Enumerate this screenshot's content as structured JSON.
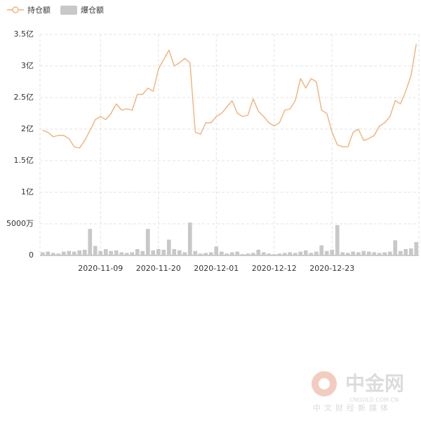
{
  "chart_data": {
    "type": "bar-line",
    "categories": [
      null,
      null,
      null,
      null,
      null,
      null,
      null,
      null,
      null,
      null,
      null,
      "2020-11-09",
      null,
      null,
      null,
      null,
      null,
      null,
      null,
      null,
      null,
      null,
      "2020-11-20",
      null,
      null,
      null,
      null,
      null,
      null,
      null,
      null,
      null,
      null,
      "2020-12-01",
      null,
      null,
      null,
      null,
      null,
      null,
      null,
      null,
      null,
      null,
      "2020-12-12",
      null,
      null,
      null,
      null,
      null,
      null,
      null,
      null,
      null,
      null,
      "2020-12-23",
      null,
      null,
      null,
      null,
      null,
      null,
      null,
      null,
      null,
      null,
      null,
      null,
      null,
      null,
      null,
      null
    ],
    "series": [
      {
        "name": "持仓额",
        "type": "line",
        "color": "#f0b27a",
        "values": [
          1.98,
          1.95,
          1.88,
          1.9,
          1.9,
          1.85,
          1.72,
          1.7,
          1.82,
          1.98,
          2.15,
          2.2,
          2.15,
          2.25,
          2.4,
          2.3,
          2.32,
          2.3,
          2.55,
          2.55,
          2.65,
          2.6,
          2.95,
          3.1,
          3.25,
          3.0,
          3.05,
          3.12,
          3.05,
          1.95,
          1.92,
          2.1,
          2.1,
          2.2,
          2.25,
          2.35,
          2.45,
          2.25,
          2.2,
          2.22,
          2.48,
          2.28,
          2.2,
          2.1,
          2.05,
          2.1,
          2.3,
          2.32,
          2.45,
          2.8,
          2.65,
          2.8,
          2.75,
          2.3,
          2.25,
          1.95,
          1.75,
          1.72,
          1.72,
          1.95,
          2.0,
          1.82,
          1.85,
          1.9,
          2.05,
          2.1,
          2.2,
          2.45,
          2.4,
          2.6,
          2.85,
          3.35
        ]
      },
      {
        "name": "爆仓额",
        "type": "bar",
        "color": "#c8c8c8",
        "values": [
          0.05,
          0.06,
          0.04,
          0.03,
          0.06,
          0.07,
          0.06,
          0.08,
          0.09,
          0.42,
          0.15,
          0.07,
          0.1,
          0.07,
          0.08,
          0.05,
          0.04,
          0.05,
          0.1,
          0.07,
          0.42,
          0.08,
          0.1,
          0.09,
          0.25,
          0.1,
          0.08,
          0.05,
          0.52,
          0.07,
          0.03,
          0.04,
          0.05,
          0.14,
          0.06,
          0.03,
          0.05,
          0.06,
          0.02,
          0.03,
          0.04,
          0.09,
          0.05,
          0.03,
          0.02,
          0.03,
          0.04,
          0.05,
          0.04,
          0.06,
          0.08,
          0.04,
          0.06,
          0.16,
          0.07,
          0.09,
          0.48,
          0.05,
          0.04,
          0.06,
          0.05,
          0.07,
          0.06,
          0.05,
          0.04,
          0.05,
          0.06,
          0.24,
          0.07,
          0.1,
          0.11,
          0.21
        ]
      }
    ],
    "ylim": [
      0,
      3.5
    ],
    "yticks": [
      {
        "value": 0,
        "label": "0"
      },
      {
        "value": 0.5,
        "label": "5000万"
      },
      {
        "value": 1,
        "label": "1亿"
      },
      {
        "value": 1.5,
        "label": "1.5亿"
      },
      {
        "value": 2,
        "label": "2亿"
      },
      {
        "value": 2.5,
        "label": "2.5亿"
      },
      {
        "value": 3,
        "label": "3亿"
      },
      {
        "value": 3.5,
        "label": "3.5亿"
      }
    ],
    "grid": true,
    "legend": "top-left"
  },
  "watermark": {
    "name": "中金网",
    "url": "CNGOLD.COM.CN",
    "slogan": "中文财经新媒体"
  }
}
